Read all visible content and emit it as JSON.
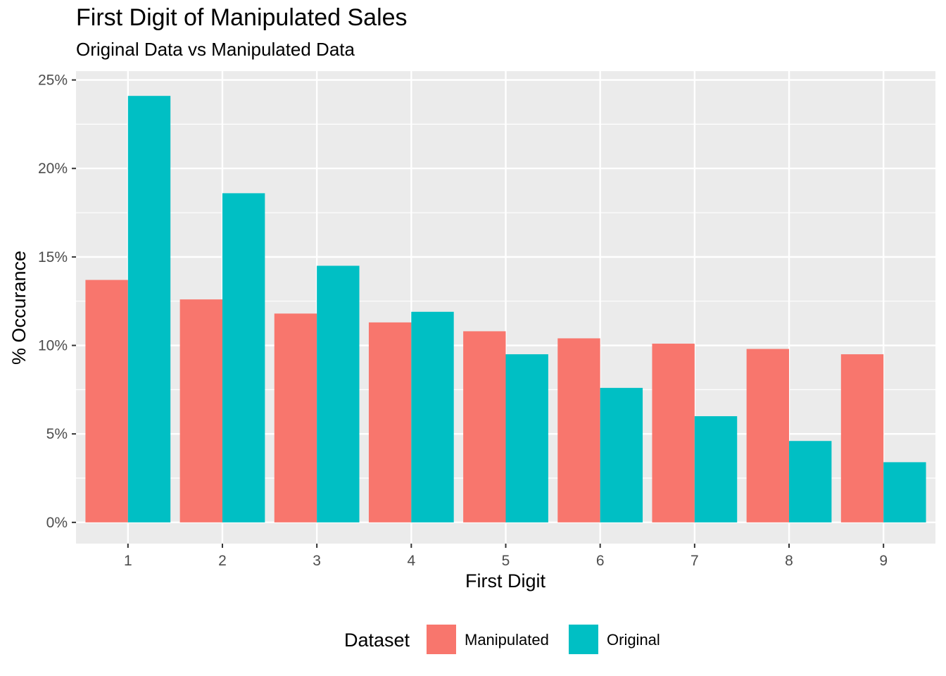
{
  "chart_data": {
    "type": "bar",
    "title": "First Digit of Manipulated Sales",
    "subtitle": "Original Data vs Manipulated Data",
    "xlabel": "First Digit",
    "ylabel": "% Occurance",
    "categories": [
      "1",
      "2",
      "3",
      "4",
      "5",
      "6",
      "7",
      "8",
      "9"
    ],
    "series": [
      {
        "name": "Manipulated",
        "color": "#F8766D",
        "values": [
          13.7,
          12.6,
          11.8,
          11.3,
          10.8,
          10.4,
          10.1,
          9.8,
          9.5
        ]
      },
      {
        "name": "Original",
        "color": "#00BFC4",
        "values": [
          24.1,
          18.6,
          14.5,
          11.9,
          9.5,
          7.6,
          6.0,
          4.6,
          3.4
        ]
      }
    ],
    "ylim": [
      -1.2,
      25.5
    ],
    "yticks": [
      0,
      5,
      10,
      15,
      20,
      25
    ],
    "ytick_labels": [
      "0%",
      "5%",
      "10%",
      "15%",
      "20%",
      "25%"
    ],
    "legend": {
      "title": "Dataset",
      "position": "bottom"
    },
    "grid": true,
    "panel_background": "#EBEBEB"
  }
}
